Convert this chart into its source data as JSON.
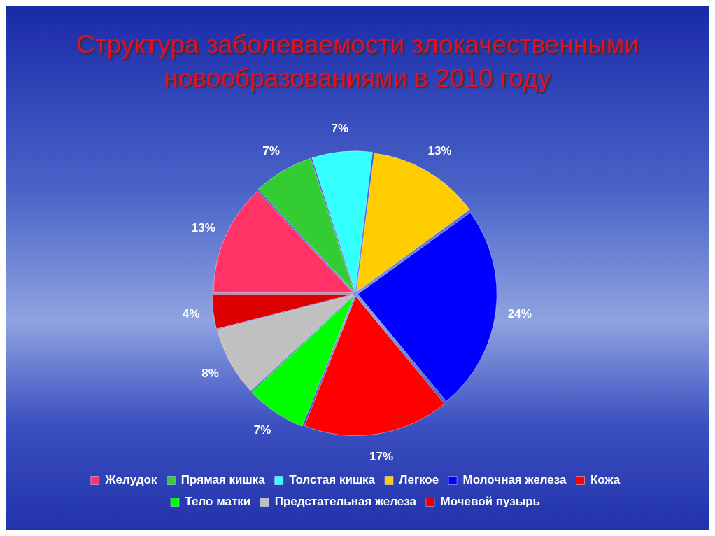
{
  "chart_data": {
    "type": "pie",
    "title": "Структура заболеваемости злокачественными новообразованиями в 2010 году",
    "categories": [
      "Желудок",
      "Прямая кишка",
      "Толстая кишка",
      "Легкое",
      "Молочная железа",
      "Кожа",
      "Тело матки",
      "Предстательная железа",
      "Мочевой пузырь"
    ],
    "values": [
      13,
      7,
      7,
      13,
      24,
      17,
      7,
      8,
      4
    ],
    "value_labels": [
      "13%",
      "7%",
      "7%",
      "13%",
      "24%",
      "17%",
      "7%",
      "8%",
      "4%"
    ],
    "colors": [
      "#ff3366",
      "#33cc33",
      "#33ffff",
      "#ffcc00",
      "#0000ff",
      "#ff0000",
      "#00ff00",
      "#c0c0c0",
      "#dd0000"
    ],
    "legend": "bottom"
  }
}
